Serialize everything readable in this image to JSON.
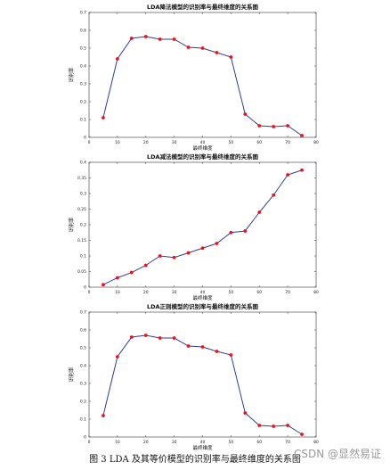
{
  "caption": "图 3 LDA 及其等价模型的识别率与最终维度的关系图",
  "watermark": "CSDN @显然易证",
  "colors": {
    "line": "#2b3f9a",
    "marker": "#e8141c",
    "axis": "#333333"
  },
  "chart_data": [
    {
      "type": "line",
      "title": "LDA降法模型的识别率与最终维度的关系图",
      "xlabel": "最终维度",
      "ylabel": "识别率",
      "xlim": [
        0,
        80
      ],
      "ylim": [
        0,
        0.7
      ],
      "xticks": [
        "0",
        "10",
        "20",
        "30",
        "40",
        "50",
        "60",
        "70",
        "80"
      ],
      "yticks": [
        "0",
        "0.1",
        "0.2",
        "0.3",
        "0.4",
        "0.5",
        "0.6",
        "0.7"
      ],
      "x": [
        5,
        10,
        15,
        20,
        25,
        30,
        35,
        40,
        45,
        50,
        55,
        60,
        65,
        70,
        75
      ],
      "y": [
        0.11,
        0.44,
        0.555,
        0.565,
        0.55,
        0.55,
        0.505,
        0.5,
        0.475,
        0.45,
        0.13,
        0.065,
        0.06,
        0.065,
        0.01
      ]
    },
    {
      "type": "line",
      "title": "LDA减法模型的识别率与最终维度的关系图",
      "xlabel": "最终维度",
      "ylabel": "识别率",
      "xlim": [
        0,
        80
      ],
      "ylim": [
        0,
        0.4
      ],
      "xticks": [
        "0",
        "10",
        "20",
        "30",
        "40",
        "50",
        "60",
        "70",
        "80"
      ],
      "yticks": [
        "0",
        "0.05",
        "0.1",
        "0.15",
        "0.2",
        "0.25",
        "0.3",
        "0.35",
        "0.4"
      ],
      "x": [
        5,
        10,
        15,
        20,
        25,
        30,
        35,
        40,
        45,
        50,
        55,
        60,
        65,
        70,
        75
      ],
      "y": [
        0.008,
        0.03,
        0.047,
        0.07,
        0.1,
        0.095,
        0.11,
        0.125,
        0.14,
        0.175,
        0.18,
        0.24,
        0.295,
        0.36,
        0.375
      ]
    },
    {
      "type": "line",
      "title": "LDA正则模型的识别率与最终维度的关系图",
      "xlabel": "最终维度",
      "ylabel": "识别率",
      "xlim": [
        0,
        80
      ],
      "ylim": [
        0,
        0.7
      ],
      "xticks": [
        "0",
        "10",
        "20",
        "30",
        "40",
        "50",
        "60",
        "70",
        "80"
      ],
      "yticks": [
        "0",
        "0.1",
        "0.2",
        "0.3",
        "0.4",
        "0.5",
        "0.6",
        "0.7"
      ],
      "x": [
        5,
        10,
        15,
        20,
        25,
        30,
        35,
        40,
        45,
        50,
        55,
        60,
        65,
        70,
        75
      ],
      "y": [
        0.12,
        0.45,
        0.56,
        0.57,
        0.555,
        0.555,
        0.51,
        0.505,
        0.48,
        0.46,
        0.135,
        0.065,
        0.06,
        0.065,
        0.015
      ]
    }
  ]
}
